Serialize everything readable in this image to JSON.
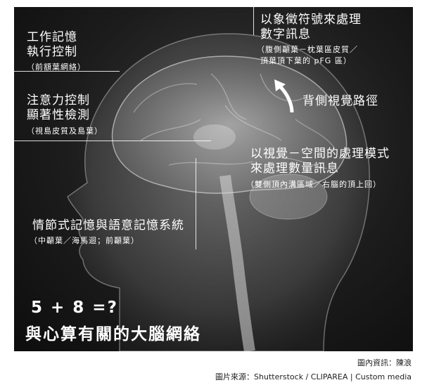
{
  "labels": {
    "exec_title_1": "工作記憶",
    "exec_title_2": "執行控制",
    "exec_sub": "（前額葉網絡）",
    "attn_title_1": "注意力控制",
    "attn_title_2": "顯著性檢測",
    "attn_sub": "（視島皮質及島葉）",
    "symbol_title_1": "以象徵符號來處理",
    "symbol_title_2": "數字訊息",
    "symbol_sub_1": "（腹側顳葉－枕葉區皮質／",
    "symbol_sub_2": "頂葉頂下葉的 pFG 區）",
    "dorsal_stream": "背側視覺路徑",
    "visuo_title_1": "以視覺－空間的處理模式",
    "visuo_title_2": "來處理數量訊息",
    "visuo_sub": "（雙側頂內溝區域／右腦的頂上回）",
    "memory_title": "情節式記憶與語意記憶系統",
    "memory_sub": "（中顳葉／海馬迴；前顳葉）",
    "equation": "5 + 8 =?",
    "headline": "與心算有關的大腦網絡"
  },
  "credits": {
    "info": "圖內資訊：陳浪",
    "source": "圖片來源：Shutterstock / CLIPAREA | Custom media"
  }
}
